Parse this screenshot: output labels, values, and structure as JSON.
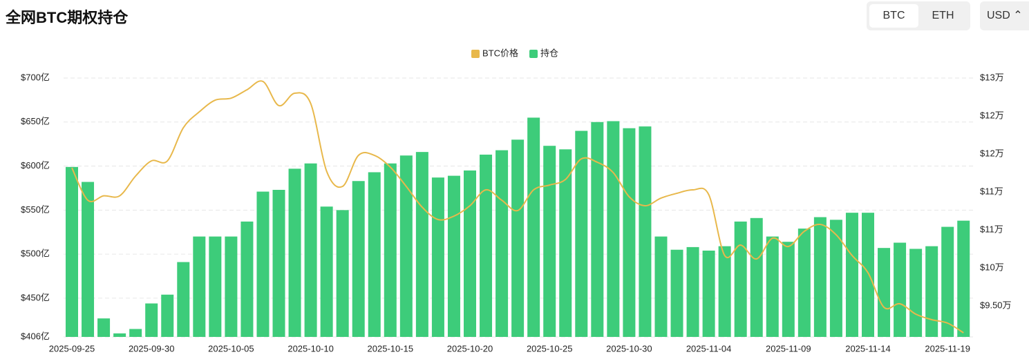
{
  "header": {
    "title": "全网BTC期权持仓",
    "tabs": [
      "BTC",
      "ETH"
    ],
    "currency": "USD"
  },
  "chart_data": {
    "type": "bar",
    "categories": [
      "2025-09-25",
      null,
      null,
      null,
      null,
      "2025-09-30",
      null,
      null,
      null,
      null,
      "2025-10-05",
      null,
      null,
      null,
      null,
      "2025-10-10",
      null,
      null,
      null,
      null,
      "2025-10-15",
      null,
      null,
      null,
      null,
      "2025-10-20",
      null,
      null,
      null,
      null,
      "2025-10-25",
      null,
      null,
      null,
      null,
      "2025-10-30",
      null,
      null,
      null,
      null,
      "2025-11-04",
      null,
      null,
      null,
      null,
      "2025-11-09",
      null,
      null,
      null,
      null,
      "2025-11-14",
      null,
      null,
      null,
      null,
      "2025-11-19",
      null
    ],
    "series": [
      {
        "name": "BTC价格",
        "type": "line",
        "axis": "y2",
        "color": "#e8b84b",
        "values": [
          116200,
          111230,
          111900,
          111900,
          114940,
          117270,
          117270,
          122360,
          124800,
          126600,
          126900,
          128200,
          129470,
          125760,
          127670,
          126080,
          115680,
          113350,
          118120,
          118120,
          116320,
          113350,
          110160,
          108260,
          108790,
          110380,
          112820,
          111230,
          109640,
          112820,
          113560,
          114410,
          117590,
          117060,
          115470,
          111760,
          110380,
          111550,
          112290,
          112820,
          112080,
          102740,
          104330,
          102210,
          105390,
          104120,
          106450,
          107510,
          105920,
          102740,
          100090,
          94790,
          95320,
          93730,
          92880,
          92350,
          90860
        ]
      },
      {
        "name": "持仓",
        "type": "bar",
        "color": "#3dcc7a",
        "values": [
          599,
          582,
          427,
          410,
          415,
          444,
          454,
          491,
          520,
          520,
          520,
          537,
          571,
          573,
          597,
          603,
          554,
          550,
          583,
          593,
          603,
          612,
          616,
          587,
          589,
          595,
          613,
          618,
          630,
          655,
          623,
          619,
          640,
          650,
          651,
          643,
          645,
          520,
          505,
          508,
          504,
          509,
          537,
          541,
          520,
          514,
          529,
          542,
          539,
          547,
          547,
          507,
          513,
          506,
          509,
          531,
          538
        ]
      }
    ],
    "ylim": [
      406,
      700
    ],
    "yticks": [
      {
        "value": 406,
        "label": "$406亿"
      },
      {
        "value": 450,
        "label": "$450亿"
      },
      {
        "value": 500,
        "label": "$500亿"
      },
      {
        "value": 550,
        "label": "$550亿"
      },
      {
        "value": 600,
        "label": "$600亿"
      },
      {
        "value": 650,
        "label": "$650亿"
      },
      {
        "value": 700,
        "label": "$700亿"
      }
    ],
    "y2lim": [
      90230,
      130000
    ],
    "y2ticks": [
      {
        "value": 95000,
        "label": "$9.50万"
      },
      {
        "value": 100833,
        "label": "$10万"
      },
      {
        "value": 106667,
        "label": "$11万"
      },
      {
        "value": 112500,
        "label": "$11万"
      },
      {
        "value": 118333,
        "label": "$12万"
      },
      {
        "value": 124167,
        "label": "$12万"
      },
      {
        "value": 130000,
        "label": "$13万"
      }
    ],
    "grid": true
  }
}
